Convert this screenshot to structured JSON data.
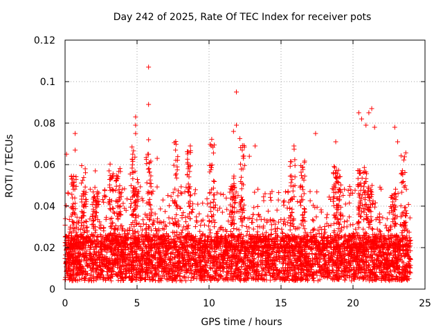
{
  "chart_data": {
    "type": "scatter",
    "title": "Day 242 of 2025, Rate Of TEC Index for receiver pots",
    "xlabel": "GPS time / hours",
    "ylabel": "ROTI / TECUs",
    "xlim": [
      0,
      25
    ],
    "ylim": [
      0,
      0.12
    ],
    "x_ticks": [
      "0",
      "5",
      "10",
      "15",
      "20",
      "25"
    ],
    "y_ticks": [
      "0",
      "0.02",
      "0.04",
      "0.06",
      "0.08",
      "0.1",
      "0.12"
    ],
    "grid": true,
    "marker": "+",
    "series": [
      {
        "name": "pots",
        "color": "#ff0000",
        "notable_points": [
          {
            "x": 0.1,
            "y": 0.065
          },
          {
            "x": 0.7,
            "y": 0.075
          },
          {
            "x": 0.7,
            "y": 0.067
          },
          {
            "x": 1.4,
            "y": 0.058
          },
          {
            "x": 2.1,
            "y": 0.057
          },
          {
            "x": 4.7,
            "y": 0.065
          },
          {
            "x": 4.9,
            "y": 0.083
          },
          {
            "x": 4.9,
            "y": 0.079
          },
          {
            "x": 4.9,
            "y": 0.075
          },
          {
            "x": 5.8,
            "y": 0.107
          },
          {
            "x": 5.8,
            "y": 0.089
          },
          {
            "x": 5.8,
            "y": 0.072
          },
          {
            "x": 5.8,
            "y": 0.065
          },
          {
            "x": 6.4,
            "y": 0.063
          },
          {
            "x": 8.7,
            "y": 0.069
          },
          {
            "x": 11.7,
            "y": 0.076
          },
          {
            "x": 11.9,
            "y": 0.095
          },
          {
            "x": 11.9,
            "y": 0.079
          },
          {
            "x": 12.8,
            "y": 0.064
          },
          {
            "x": 13.2,
            "y": 0.069
          },
          {
            "x": 15.9,
            "y": 0.069
          },
          {
            "x": 17.4,
            "y": 0.075
          },
          {
            "x": 18.8,
            "y": 0.071
          },
          {
            "x": 20.4,
            "y": 0.085
          },
          {
            "x": 20.6,
            "y": 0.082
          },
          {
            "x": 20.9,
            "y": 0.079
          },
          {
            "x": 21.1,
            "y": 0.085
          },
          {
            "x": 21.3,
            "y": 0.087
          },
          {
            "x": 21.5,
            "y": 0.078
          },
          {
            "x": 22.9,
            "y": 0.078
          },
          {
            "x": 23.1,
            "y": 0.071
          }
        ]
      }
    ]
  }
}
